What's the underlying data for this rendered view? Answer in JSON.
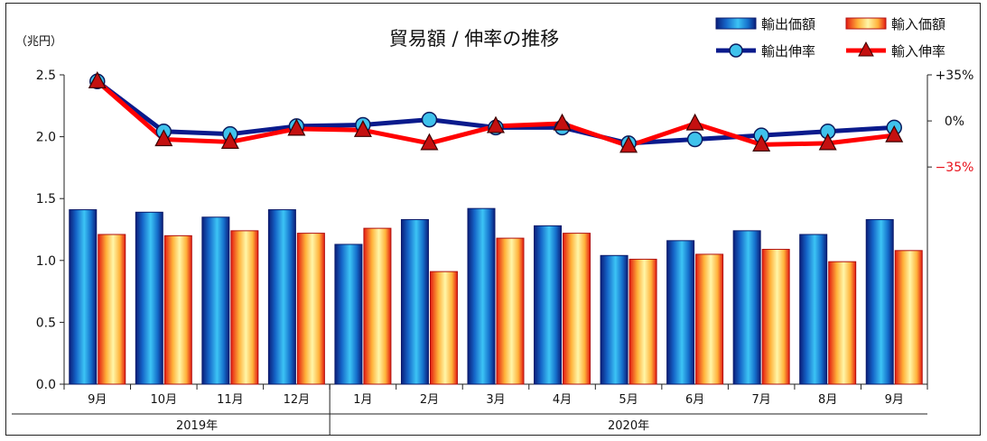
{
  "chart_data": {
    "type": "bar+line",
    "title": "貿易額 / 伸率の推移",
    "unit_left": "（兆円）",
    "categories": [
      "9月",
      "10月",
      "11月",
      "12月",
      "1月",
      "2月",
      "3月",
      "4月",
      "5月",
      "6月",
      "7月",
      "8月",
      "9月"
    ],
    "year_groups": [
      {
        "label": "2019年",
        "start": 0,
        "end": 3
      },
      {
        "label": "2020年",
        "start": 4,
        "end": 12
      }
    ],
    "ylim_left": [
      0,
      2.5
    ],
    "yticks_left": [
      "0.0",
      "0.5",
      "1.0",
      "1.5",
      "2.0",
      "2.5"
    ],
    "ylim_right": [
      -200,
      35
    ],
    "yticks_right": [
      {
        "label": "+35%",
        "value": 35,
        "color": "#111111"
      },
      {
        "label": "0%",
        "value": 0,
        "color": "#111111"
      },
      {
        "label": "−35%",
        "value": -35,
        "color": "#e8101a"
      }
    ],
    "bar_series": [
      {
        "name": "輸出価額",
        "color": "#1f7fd6",
        "values": [
          1.41,
          1.39,
          1.35,
          1.41,
          1.13,
          1.33,
          1.42,
          1.28,
          1.04,
          1.16,
          1.24,
          1.21,
          1.33
        ]
      },
      {
        "name": "輸入価額",
        "color": "#ffd23c",
        "values": [
          1.21,
          1.2,
          1.24,
          1.22,
          1.26,
          0.91,
          1.18,
          1.22,
          1.01,
          1.05,
          1.09,
          0.99,
          1.08
        ]
      }
    ],
    "line_series": [
      {
        "name": "輸出伸率",
        "color": "#0a1a8c",
        "marker": "circle",
        "values": [
          30,
          -8,
          -10,
          -4,
          -3,
          1,
          -5,
          -5,
          -17,
          -14,
          -11,
          -8,
          -5
        ]
      },
      {
        "name": "輸入伸率",
        "color": "#ff0000",
        "marker": "triangle",
        "values": [
          30,
          -14,
          -16,
          -6,
          -7,
          -17,
          -4,
          -2,
          -19,
          -2,
          -18,
          -17,
          -11
        ]
      }
    ],
    "legend_position": "top-right",
    "grid": false
  }
}
